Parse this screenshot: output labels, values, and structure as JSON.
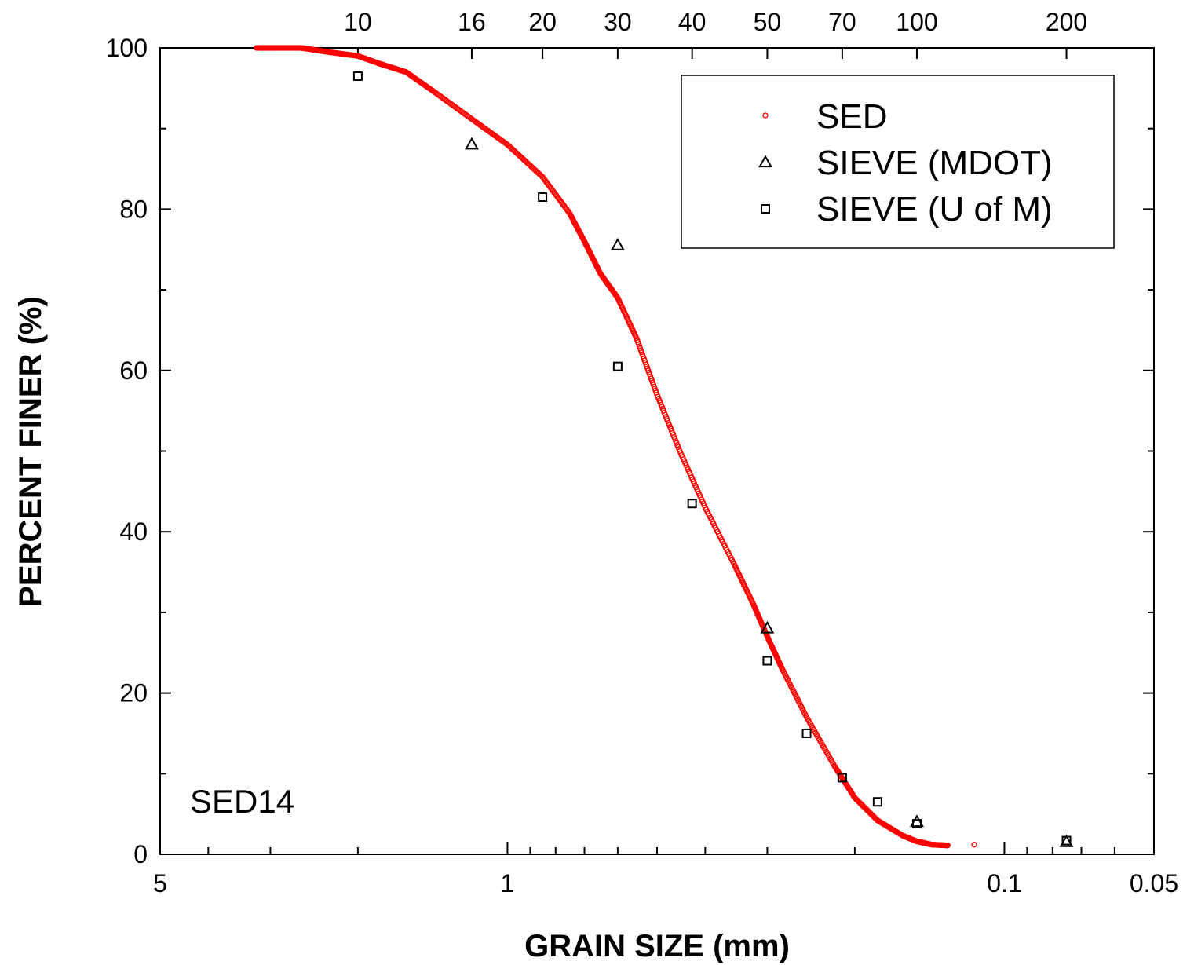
{
  "chart_data": {
    "type": "scatter",
    "xlabel": "GRAIN SIZE (mm)",
    "ylabel": "PERCENT FINER (%)",
    "x_scale": "log",
    "x_reversed": true,
    "xlim": [
      5,
      0.05
    ],
    "ylim": [
      0,
      100
    ],
    "x_ticks": [
      {
        "value": 5,
        "label": "5"
      },
      {
        "value": 1,
        "label": "1"
      },
      {
        "value": 0.1,
        "label": "0.1"
      },
      {
        "value": 0.05,
        "label": "0.05"
      }
    ],
    "y_ticks": [
      {
        "value": 0,
        "label": "0"
      },
      {
        "value": 20,
        "label": "20"
      },
      {
        "value": 40,
        "label": "40"
      },
      {
        "value": 60,
        "label": "60"
      },
      {
        "value": 80,
        "label": "80"
      },
      {
        "value": 100,
        "label": "100"
      }
    ],
    "top_axis_sieves": [
      {
        "label": "10",
        "size": 2.0
      },
      {
        "label": "16",
        "size": 1.18
      },
      {
        "label": "20",
        "size": 0.85
      },
      {
        "label": "30",
        "size": 0.6
      },
      {
        "label": "40",
        "size": 0.425
      },
      {
        "label": "50",
        "size": 0.3
      },
      {
        "label": "70",
        "size": 0.212
      },
      {
        "label": "100",
        "size": 0.15
      },
      {
        "label": "200",
        "size": 0.075
      }
    ],
    "annotation": "SED14",
    "legend_position": "top-right",
    "grid": false,
    "series": [
      {
        "name": "SED",
        "marker": "circle",
        "color": "#ff0000",
        "curve": [
          [
            3.2,
            100
          ],
          [
            2.9,
            100
          ],
          [
            2.6,
            100
          ],
          [
            2.3,
            99.5
          ],
          [
            2.0,
            99.0
          ],
          [
            1.8,
            98.0
          ],
          [
            1.6,
            97.0
          ],
          [
            1.4,
            94.5
          ],
          [
            1.2,
            91.5
          ],
          [
            1.0,
            88.0
          ],
          [
            0.85,
            84.0
          ],
          [
            0.75,
            79.5
          ],
          [
            0.7,
            76.0
          ],
          [
            0.65,
            72.0
          ],
          [
            0.6,
            69.0
          ],
          [
            0.55,
            64.0
          ],
          [
            0.5,
            57.0
          ],
          [
            0.45,
            50.0
          ],
          [
            0.4,
            43.0
          ],
          [
            0.35,
            36.0
          ],
          [
            0.32,
            31.0
          ],
          [
            0.3,
            27.0
          ],
          [
            0.28,
            23.0
          ],
          [
            0.25,
            17.0
          ],
          [
            0.22,
            11.0
          ],
          [
            0.2,
            7.0
          ],
          [
            0.18,
            4.2
          ],
          [
            0.16,
            2.3
          ],
          [
            0.15,
            1.6
          ],
          [
            0.14,
            1.2
          ],
          [
            0.13,
            1.1
          ]
        ],
        "outliers": [
          {
            "x": 0.115,
            "y": 1.2
          }
        ]
      },
      {
        "name": "SIEVE (MDOT)",
        "marker": "triangle",
        "color": "#000000",
        "x": [
          1.18,
          0.6,
          0.3,
          0.15,
          0.075
        ],
        "y": [
          88.0,
          75.5,
          28.0,
          4.0,
          1.5
        ]
      },
      {
        "name": "SIEVE (U of M)",
        "marker": "square",
        "color": "#000000",
        "x": [
          2.0,
          0.85,
          0.6,
          0.425,
          0.3,
          0.25,
          0.212,
          0.18,
          0.15,
          0.075
        ],
        "y": [
          96.5,
          81.5,
          60.5,
          43.5,
          24.0,
          15.0,
          9.5,
          6.5,
          3.8,
          1.7
        ]
      }
    ]
  }
}
